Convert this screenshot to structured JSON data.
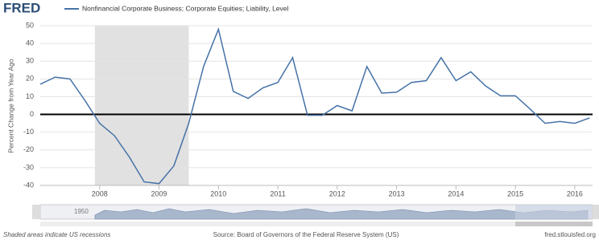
{
  "chart_data": {
    "type": "line",
    "logo": "FRED",
    "title": "Nonfinancial Corporate Business; Corporate Equities; Liability, Level",
    "y_label": "Percent Change from Year Ago",
    "x": [
      2007,
      2007.25,
      2007.5,
      2007.75,
      2008,
      2008.25,
      2008.5,
      2008.75,
      2009,
      2009.25,
      2009.5,
      2009.75,
      2010,
      2010.25,
      2010.5,
      2010.75,
      2011,
      2011.25,
      2011.5,
      2011.75,
      2012,
      2012.25,
      2012.5,
      2012.75,
      2013,
      2013.25,
      2013.5,
      2013.75,
      2014,
      2014.25,
      2014.5,
      2014.75,
      2015,
      2015.25,
      2015.5,
      2015.75,
      2016,
      2016.25
    ],
    "series": [
      {
        "name": "Nonfinancial Corporate Business; Corporate Equities; Liability, Level",
        "color": "#4572a7",
        "values": [
          17,
          21,
          20,
          8,
          -5,
          -12,
          -24,
          -38,
          -39,
          -29,
          -5,
          27,
          48,
          13,
          9,
          15,
          18,
          32,
          -0.5,
          -0.5,
          5,
          2,
          27,
          12,
          12.5,
          18,
          19,
          32,
          19,
          24,
          16,
          10.5,
          10.5,
          3,
          -5,
          -4,
          -5,
          -2
        ]
      }
    ],
    "xlim": [
      2007,
      2016.3
    ],
    "ylim": [
      -40,
      50
    ],
    "xticks": [
      2008,
      2009,
      2010,
      2011,
      2012,
      2013,
      2014,
      2015,
      2016
    ],
    "yticks": [
      -40,
      -30,
      -20,
      -10,
      0,
      10,
      20,
      30,
      40,
      50
    ],
    "grid": true,
    "recessions": [
      [
        2007.92,
        2009.5
      ]
    ],
    "navigator_label": "1950",
    "footer_left": "Shaded areas indicate US recessions",
    "footer_center": "Source: Board of Governors of the Federal Reserve System (US)",
    "footer_right": "fred.stlouisfed.org"
  }
}
